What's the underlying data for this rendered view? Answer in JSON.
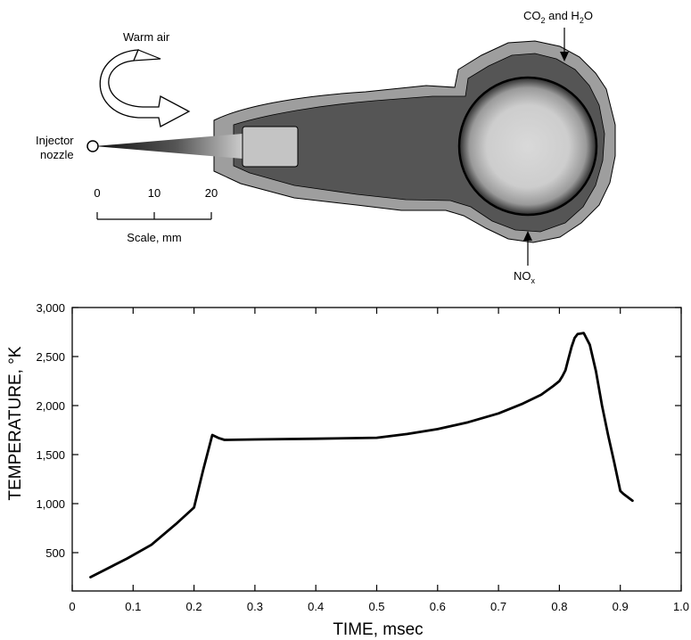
{
  "diagram": {
    "warm_air_label": "Warm air",
    "injector_label_line1": "Injector",
    "injector_label_line2": "nozzle",
    "scale_ticks": [
      "0",
      "10",
      "20"
    ],
    "scale_label": "Scale, mm",
    "co2_label": {
      "a": "CO",
      "a_sub": "2",
      "b": " and H",
      "b_sub": "2",
      "c": "O"
    },
    "nox_label": {
      "base": "NO",
      "sub": "x"
    }
  },
  "chart_data": {
    "type": "line",
    "title": "",
    "xlabel": "TIME, msec",
    "ylabel": "TEMPERATURE, °K",
    "xlim": [
      0,
      1.0
    ],
    "ylim": [
      250,
      3000
    ],
    "x_ticks": [
      0,
      0.1,
      0.2,
      0.3,
      0.4,
      0.5,
      0.6,
      0.7,
      0.8,
      0.9,
      1.0
    ],
    "x_tick_labels": [
      "0",
      "0.1",
      "0.2",
      "0.3",
      "0.4",
      "0.5",
      "0.6",
      "0.7",
      "0.8",
      "0.9",
      "1.0"
    ],
    "y_ticks": [
      500,
      1000,
      1500,
      2000,
      2500,
      3000
    ],
    "y_tick_labels": [
      "500",
      "1,000",
      "1,500",
      "2,000",
      "2,500",
      "3,000"
    ],
    "grid": false,
    "series": [
      {
        "x": [
          0.03,
          0.09,
          0.13,
          0.17,
          0.2,
          0.215,
          0.23,
          0.24,
          0.25,
          0.3,
          0.4,
          0.5,
          0.55,
          0.6,
          0.65,
          0.7,
          0.74,
          0.77,
          0.79,
          0.8,
          0.805,
          0.81,
          0.815,
          0.82,
          0.825,
          0.83,
          0.84,
          0.85,
          0.86,
          0.87,
          0.88,
          0.89,
          0.9,
          0.905,
          0.92
        ],
        "y": [
          250,
          440,
          580,
          790,
          960,
          1340,
          1700,
          1670,
          1650,
          1655,
          1662,
          1672,
          1710,
          1760,
          1830,
          1920,
          2020,
          2110,
          2200,
          2250,
          2300,
          2360,
          2480,
          2600,
          2690,
          2730,
          2740,
          2620,
          2350,
          2000,
          1700,
          1420,
          1130,
          1100,
          1030
        ]
      }
    ]
  }
}
